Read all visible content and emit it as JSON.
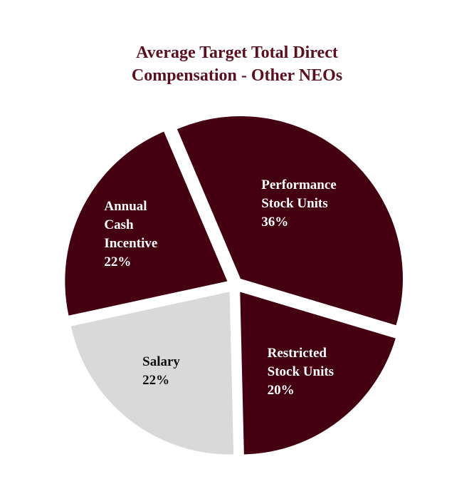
{
  "chart_data": {
    "type": "pie",
    "title": "Average Target Total Direct Compensation - Other NEOs",
    "categories": [
      "Performance Stock Units",
      "Restricted Stock Units",
      "Salary",
      "Annual Cash Incentive"
    ],
    "values": [
      36,
      20,
      22,
      22
    ],
    "value_labels": [
      "36%",
      "20%",
      "22%",
      "22%"
    ],
    "colors": [
      "#440010",
      "#440010",
      "#d9d9d9",
      "#440010"
    ]
  }
}
